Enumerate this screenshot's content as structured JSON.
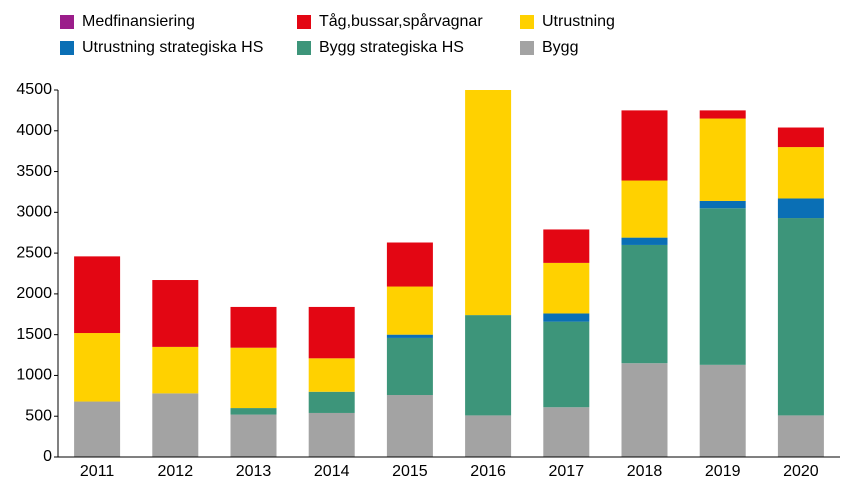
{
  "chart_data": {
    "type": "stacked_bar",
    "categories": [
      "2011",
      "2012",
      "2013",
      "2014",
      "2015",
      "2016",
      "2017",
      "2018",
      "2019",
      "2020"
    ],
    "series": [
      {
        "name": "Medfinansiering",
        "color": "#9b1d8a",
        "values": [
          0,
          0,
          0,
          0,
          0,
          0,
          0,
          0,
          0,
          0
        ]
      },
      {
        "name": "Tåg,bussar,spårvagnar",
        "color": "#e30613",
        "values": [
          940,
          820,
          500,
          630,
          540,
          0,
          410,
          860,
          100,
          240
        ]
      },
      {
        "name": "Utrustning",
        "color": "#ffd100",
        "values": [
          840,
          570,
          740,
          410,
          590,
          2760,
          620,
          700,
          1010,
          630
        ]
      },
      {
        "name": "Utrustning strategiska HS",
        "color": "#0a6fb5",
        "values": [
          0,
          0,
          0,
          0,
          40,
          0,
          100,
          90,
          90,
          240
        ]
      },
      {
        "name": "Bygg strategiska HS",
        "color": "#3d957a",
        "values": [
          0,
          0,
          80,
          260,
          700,
          1230,
          1050,
          1450,
          1920,
          2420
        ]
      },
      {
        "name": "Bygg",
        "color": "#a3a3a3",
        "values": [
          680,
          780,
          520,
          540,
          760,
          510,
          610,
          1150,
          1130,
          510
        ]
      }
    ],
    "ylim": [
      0,
      4500
    ],
    "yticks": [
      0,
      500,
      1000,
      1500,
      2000,
      2500,
      3000,
      3500,
      4000,
      4500
    ]
  }
}
